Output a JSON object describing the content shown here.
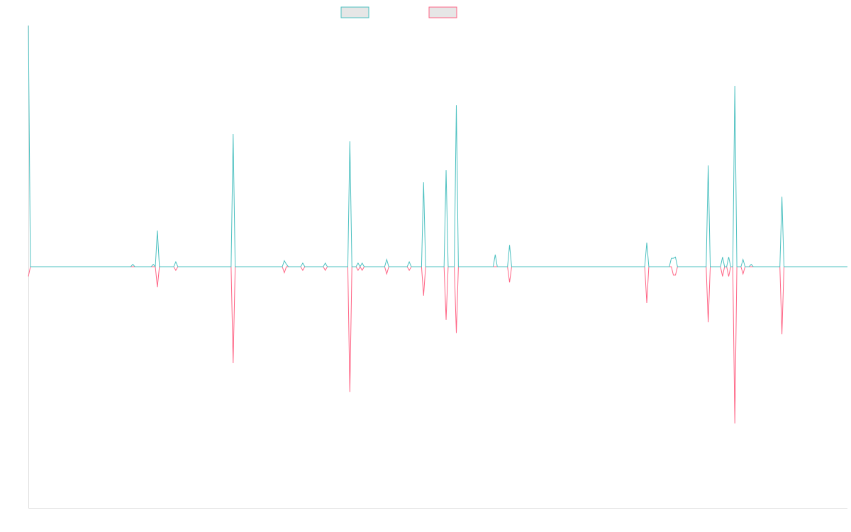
{
  "chart_data": {
    "type": "line",
    "title": "",
    "xlabel": "",
    "ylabel": "",
    "grid": false,
    "legend_position": "top-center",
    "x_count": 401,
    "ylim": [
      -100,
      100
    ],
    "series": [
      {
        "color": "#4bc0c0",
        "fill": "#e6e6e6",
        "spikes": [
          [
            0,
            100
          ],
          [
            51,
            1
          ],
          [
            61,
            1
          ],
          [
            63,
            15
          ],
          [
            72,
            2
          ],
          [
            100,
            55
          ],
          [
            125,
            2.5
          ],
          [
            126,
            1
          ],
          [
            134,
            1.5
          ],
          [
            145,
            1.5
          ],
          [
            157,
            52
          ],
          [
            161,
            1.5
          ],
          [
            163,
            1.5
          ],
          [
            175,
            3
          ],
          [
            186,
            2
          ],
          [
            193,
            35
          ],
          [
            204,
            40
          ],
          [
            209,
            67
          ],
          [
            228,
            5
          ],
          [
            235,
            9
          ],
          [
            302,
            10
          ],
          [
            314,
            3.5
          ],
          [
            315,
            3.5
          ],
          [
            316,
            4
          ],
          [
            332,
            42
          ],
          [
            339,
            4
          ],
          [
            342,
            4
          ],
          [
            345,
            75
          ],
          [
            349,
            3
          ],
          [
            353,
            1
          ],
          [
            368,
            29
          ]
        ]
      },
      {
        "color": "#ff6384",
        "fill": "#e6e6e6",
        "spikes": [
          [
            0,
            -4
          ],
          [
            63,
            -8.5
          ],
          [
            72,
            -1.5
          ],
          [
            100,
            -40
          ],
          [
            125,
            -2.5
          ],
          [
            134,
            -1.5
          ],
          [
            145,
            -1.5
          ],
          [
            157,
            -52
          ],
          [
            161,
            -1.5
          ],
          [
            163,
            -1.5
          ],
          [
            175,
            -3
          ],
          [
            186,
            -1.5
          ],
          [
            193,
            -12
          ],
          [
            204,
            -22
          ],
          [
            209,
            -27.5
          ],
          [
            235,
            -6.5
          ],
          [
            302,
            -15
          ],
          [
            315,
            -3.5
          ],
          [
            316,
            -3.5
          ],
          [
            332,
            -23
          ],
          [
            339,
            -4
          ],
          [
            342,
            -4
          ],
          [
            345,
            -65
          ],
          [
            349,
            -3
          ],
          [
            368,
            -28
          ]
        ]
      }
    ]
  }
}
